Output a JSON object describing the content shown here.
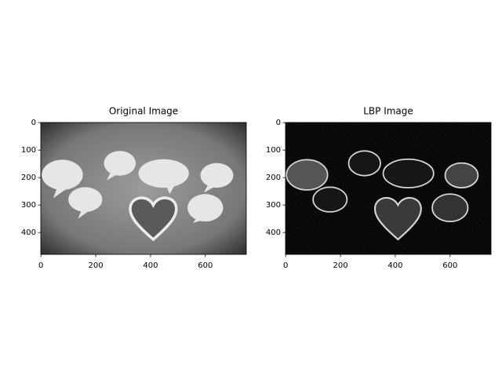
{
  "chart_data": [
    {
      "type": "image",
      "title": "Original Image",
      "xlim": [
        -0.5,
        749.5
      ],
      "ylim": [
        479.5,
        -0.5
      ],
      "xticks": [
        0,
        200,
        400,
        600
      ],
      "yticks": [
        0,
        100,
        200,
        300,
        400
      ]
    },
    {
      "type": "image",
      "title": "LBP Image",
      "xlim": [
        -0.5,
        749.5
      ],
      "ylim": [
        479.5,
        -0.5
      ],
      "xticks": [
        0,
        200,
        400,
        600
      ],
      "yticks": [
        0,
        100,
        200,
        300,
        400
      ]
    }
  ]
}
